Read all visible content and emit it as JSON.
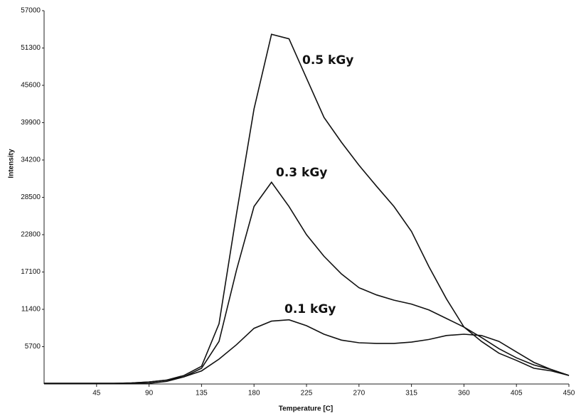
{
  "chart_data": {
    "type": "line",
    "x_label": "Temperature [C]",
    "y_label": "Intensity",
    "x": [
      0,
      15,
      30,
      45,
      60,
      75,
      90,
      105,
      120,
      135,
      150,
      165,
      180,
      195,
      210,
      225,
      240,
      255,
      270,
      285,
      300,
      315,
      330,
      345,
      360,
      375,
      390,
      405,
      420,
      435,
      450
    ],
    "series": [
      {
        "name": "0.5 kGy",
        "color": "#111111",
        "values": [
          100,
          100,
          100,
          100,
          100,
          150,
          300,
          600,
          1300,
          2700,
          9200,
          26000,
          42000,
          53400,
          52700,
          46700,
          40700,
          36900,
          33400,
          30200,
          27100,
          23300,
          17900,
          13000,
          8700,
          6500,
          4700,
          3600,
          2400,
          2000,
          1300
        ]
      },
      {
        "name": "0.3 kGy",
        "color": "#111111",
        "values": [
          100,
          100,
          100,
          100,
          100,
          150,
          300,
          600,
          1100,
          2400,
          6500,
          17400,
          27100,
          30800,
          27100,
          22800,
          19500,
          16800,
          14700,
          13600,
          12800,
          12200,
          11300,
          10000,
          8700,
          7100,
          5400,
          4000,
          2900,
          2200,
          1300
        ]
      },
      {
        "name": "0.1 kGy",
        "color": "#111111",
        "values": [
          50,
          50,
          50,
          50,
          50,
          50,
          100,
          400,
          1100,
          2000,
          3800,
          6000,
          8500,
          9600,
          9800,
          8900,
          7600,
          6700,
          6300,
          6200,
          6200,
          6400,
          6800,
          7400,
          7600,
          7400,
          6500,
          4900,
          3300,
          2200,
          1300
        ]
      }
    ],
    "xlim": [
      0,
      450
    ],
    "xticks": [
      45,
      90,
      135,
      180,
      225,
      270,
      315,
      360,
      405,
      450
    ],
    "ylim": [
      0,
      57000
    ],
    "yticks": [
      5700,
      11400,
      17100,
      22800,
      28500,
      34200,
      39900,
      45600,
      51300,
      57000
    ],
    "grid": false
  }
}
